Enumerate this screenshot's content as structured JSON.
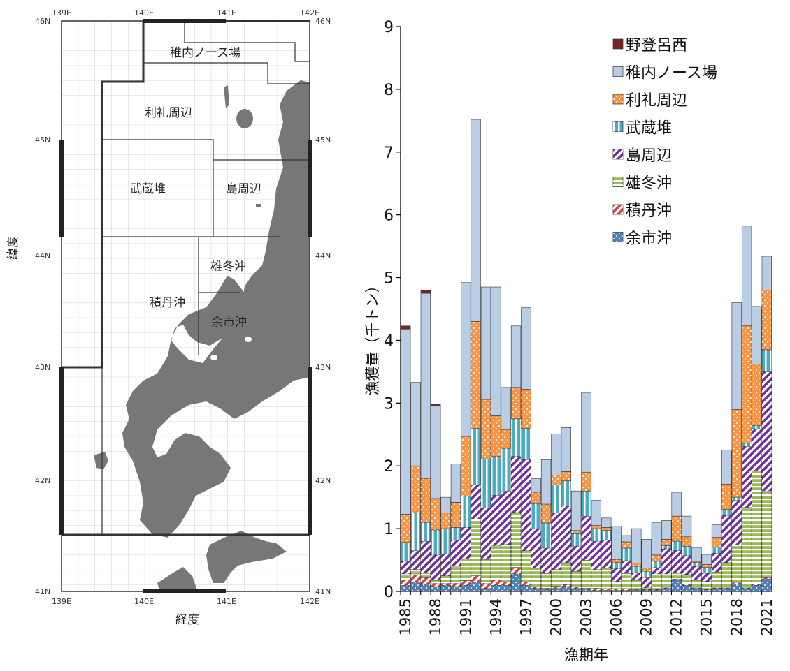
{
  "map": {
    "x_axis_label": "経度",
    "y_axis_label": "緯度",
    "lon_ticks": [
      "139E",
      "140E",
      "141E",
      "142E"
    ],
    "lat_ticks": [
      "46N",
      "45N",
      "44N",
      "43N",
      "42N",
      "41N"
    ],
    "regions": [
      "稚内ノース場",
      "利礼周辺",
      "武蔵堆",
      "島周辺",
      "雄冬沖",
      "積丹沖",
      "余市沖"
    ]
  },
  "chart_data": {
    "type": "bar",
    "stacked": true,
    "xlabel": "漁期年",
    "ylabel": "漁獲量（千トン）",
    "ylim": [
      0,
      9
    ],
    "yticks": [
      0,
      1,
      2,
      3,
      4,
      5,
      6,
      7,
      8,
      9
    ],
    "xtick_labels": [
      "1985",
      "1988",
      "1991",
      "1994",
      "1997",
      "2000",
      "2003",
      "2006",
      "2009",
      "2012",
      "2015",
      "2018",
      "2021"
    ],
    "grid": false,
    "legend_position": "top-right",
    "categories": [
      "1985",
      "1986",
      "1987",
      "1988",
      "1989",
      "1990",
      "1991",
      "1992",
      "1993",
      "1994",
      "1995",
      "1996",
      "1997",
      "1998",
      "1999",
      "2000",
      "2001",
      "2002",
      "2003",
      "2004",
      "2005",
      "2006",
      "2007",
      "2008",
      "2009",
      "2010",
      "2011",
      "2012",
      "2013",
      "2014",
      "2015",
      "2016",
      "2017",
      "2018",
      "2019",
      "2020",
      "2021"
    ],
    "series": [
      {
        "name": "余市沖",
        "color": "#4f81bd",
        "pattern": "dots",
        "values": [
          0.1,
          0.15,
          0.12,
          0.08,
          0.1,
          0.08,
          0.1,
          0.15,
          0.05,
          0.1,
          0.1,
          0.28,
          0.1,
          0.05,
          0.03,
          0.05,
          0.08,
          0.05,
          0.03,
          0.02,
          0.02,
          0.02,
          0.02,
          0.02,
          0.02,
          0.02,
          0.05,
          0.18,
          0.1,
          0.05,
          0.03,
          0.05,
          0.05,
          0.12,
          0.05,
          0.1,
          0.2
        ]
      },
      {
        "name": "積丹沖",
        "color": "#d9413c",
        "pattern": "diag",
        "values": [
          0.08,
          0.12,
          0.1,
          0.05,
          0.03,
          0.05,
          0.07,
          0.1,
          0.08,
          0.08,
          0.05,
          0.1,
          0.05,
          0.02,
          0.02,
          0.03,
          0.03,
          0.02,
          0.02,
          0.03,
          0.02,
          0.02,
          0.02,
          0.01,
          0.01,
          0.01,
          0.01,
          0.02,
          0.02,
          0.01,
          0.01,
          0.01,
          0.01,
          0.02,
          0.01,
          0.02,
          0.02
        ]
      },
      {
        "name": "雄冬沖",
        "color": "#9bbb59",
        "pattern": "hlines",
        "values": [
          0.1,
          0.08,
          0.08,
          0.05,
          0.12,
          0.27,
          0.35,
          0.9,
          0.38,
          0.55,
          0.6,
          0.88,
          0.5,
          0.3,
          0.24,
          0.27,
          0.35,
          0.25,
          0.45,
          0.3,
          0.33,
          0.12,
          0.25,
          0.15,
          0.03,
          0.25,
          0.22,
          0.1,
          0.15,
          0.12,
          0.12,
          0.25,
          0.4,
          0.6,
          1.28,
          1.8,
          1.38
        ]
      },
      {
        "name": "島周辺",
        "color": "#7030a0",
        "pattern": "diag",
        "values": [
          0.2,
          0.3,
          0.5,
          0.4,
          0.35,
          0.42,
          0.5,
          0.55,
          0.82,
          0.8,
          0.85,
          0.89,
          1.45,
          0.63,
          0.4,
          0.9,
          0.9,
          0.4,
          0.7,
          0.45,
          0.45,
          0.2,
          0.2,
          0.12,
          0.16,
          0.1,
          0.4,
          0.35,
          0.3,
          0.22,
          0.13,
          0.3,
          0.75,
          0.71,
          0.97,
          0.67,
          1.9
        ]
      },
      {
        "name": "武蔵堆",
        "color": "#4bacc6",
        "pattern": "vlines",
        "values": [
          0.3,
          0.6,
          0.3,
          0.4,
          0.4,
          0.2,
          0.5,
          0.9,
          0.78,
          0.62,
          0.68,
          0.6,
          0.5,
          0.4,
          0.4,
          0.45,
          0.4,
          0.2,
          0.4,
          0.2,
          0.15,
          0.1,
          0.2,
          0.1,
          0.1,
          0.1,
          0.05,
          0.15,
          0.15,
          0.06,
          0.09,
          0.1,
          0.1,
          0.05,
          0.05,
          0.05,
          0.35
        ]
      },
      {
        "name": "利礼周辺",
        "color": "#f79646",
        "pattern": "dots",
        "values": [
          0.45,
          0.75,
          0.7,
          0.5,
          0.25,
          0.4,
          0.95,
          1.7,
          0.95,
          0.65,
          0.3,
          0.5,
          0.62,
          0.18,
          0.3,
          0.15,
          0.15,
          0.05,
          0.3,
          0.05,
          0.05,
          0.05,
          0.1,
          0.05,
          0.05,
          0.1,
          0.1,
          0.4,
          0.15,
          0.02,
          0.05,
          0.15,
          0.4,
          1.4,
          1.87,
          0.98,
          0.95
        ]
      },
      {
        "name": "稚内ノース場",
        "color": "#b9cde5",
        "pattern": "none",
        "values": [
          2.95,
          1.33,
          2.95,
          1.48,
          0.25,
          0.61,
          2.45,
          3.22,
          1.79,
          2.05,
          0.67,
          0.98,
          1.3,
          0.22,
          0.71,
          0.66,
          0.7,
          0.63,
          1.27,
          0.4,
          0.15,
          0.53,
          0.1,
          0.55,
          0.46,
          0.52,
          0.3,
          0.38,
          0.33,
          0.22,
          0.16,
          0.2,
          0.54,
          1.7,
          1.59,
          0.92,
          0.54
        ]
      },
      {
        "name": "野登呂西",
        "color": "#7b2121",
        "pattern": "none",
        "values": [
          0.05,
          0,
          0.05,
          0.02,
          0,
          0,
          0,
          0,
          0,
          0,
          0,
          0,
          0,
          0,
          0,
          0,
          0,
          0,
          0,
          0,
          0,
          0,
          0,
          0,
          0,
          0,
          0,
          0,
          0,
          0,
          0,
          0,
          0,
          0,
          0,
          0,
          0
        ]
      }
    ]
  }
}
